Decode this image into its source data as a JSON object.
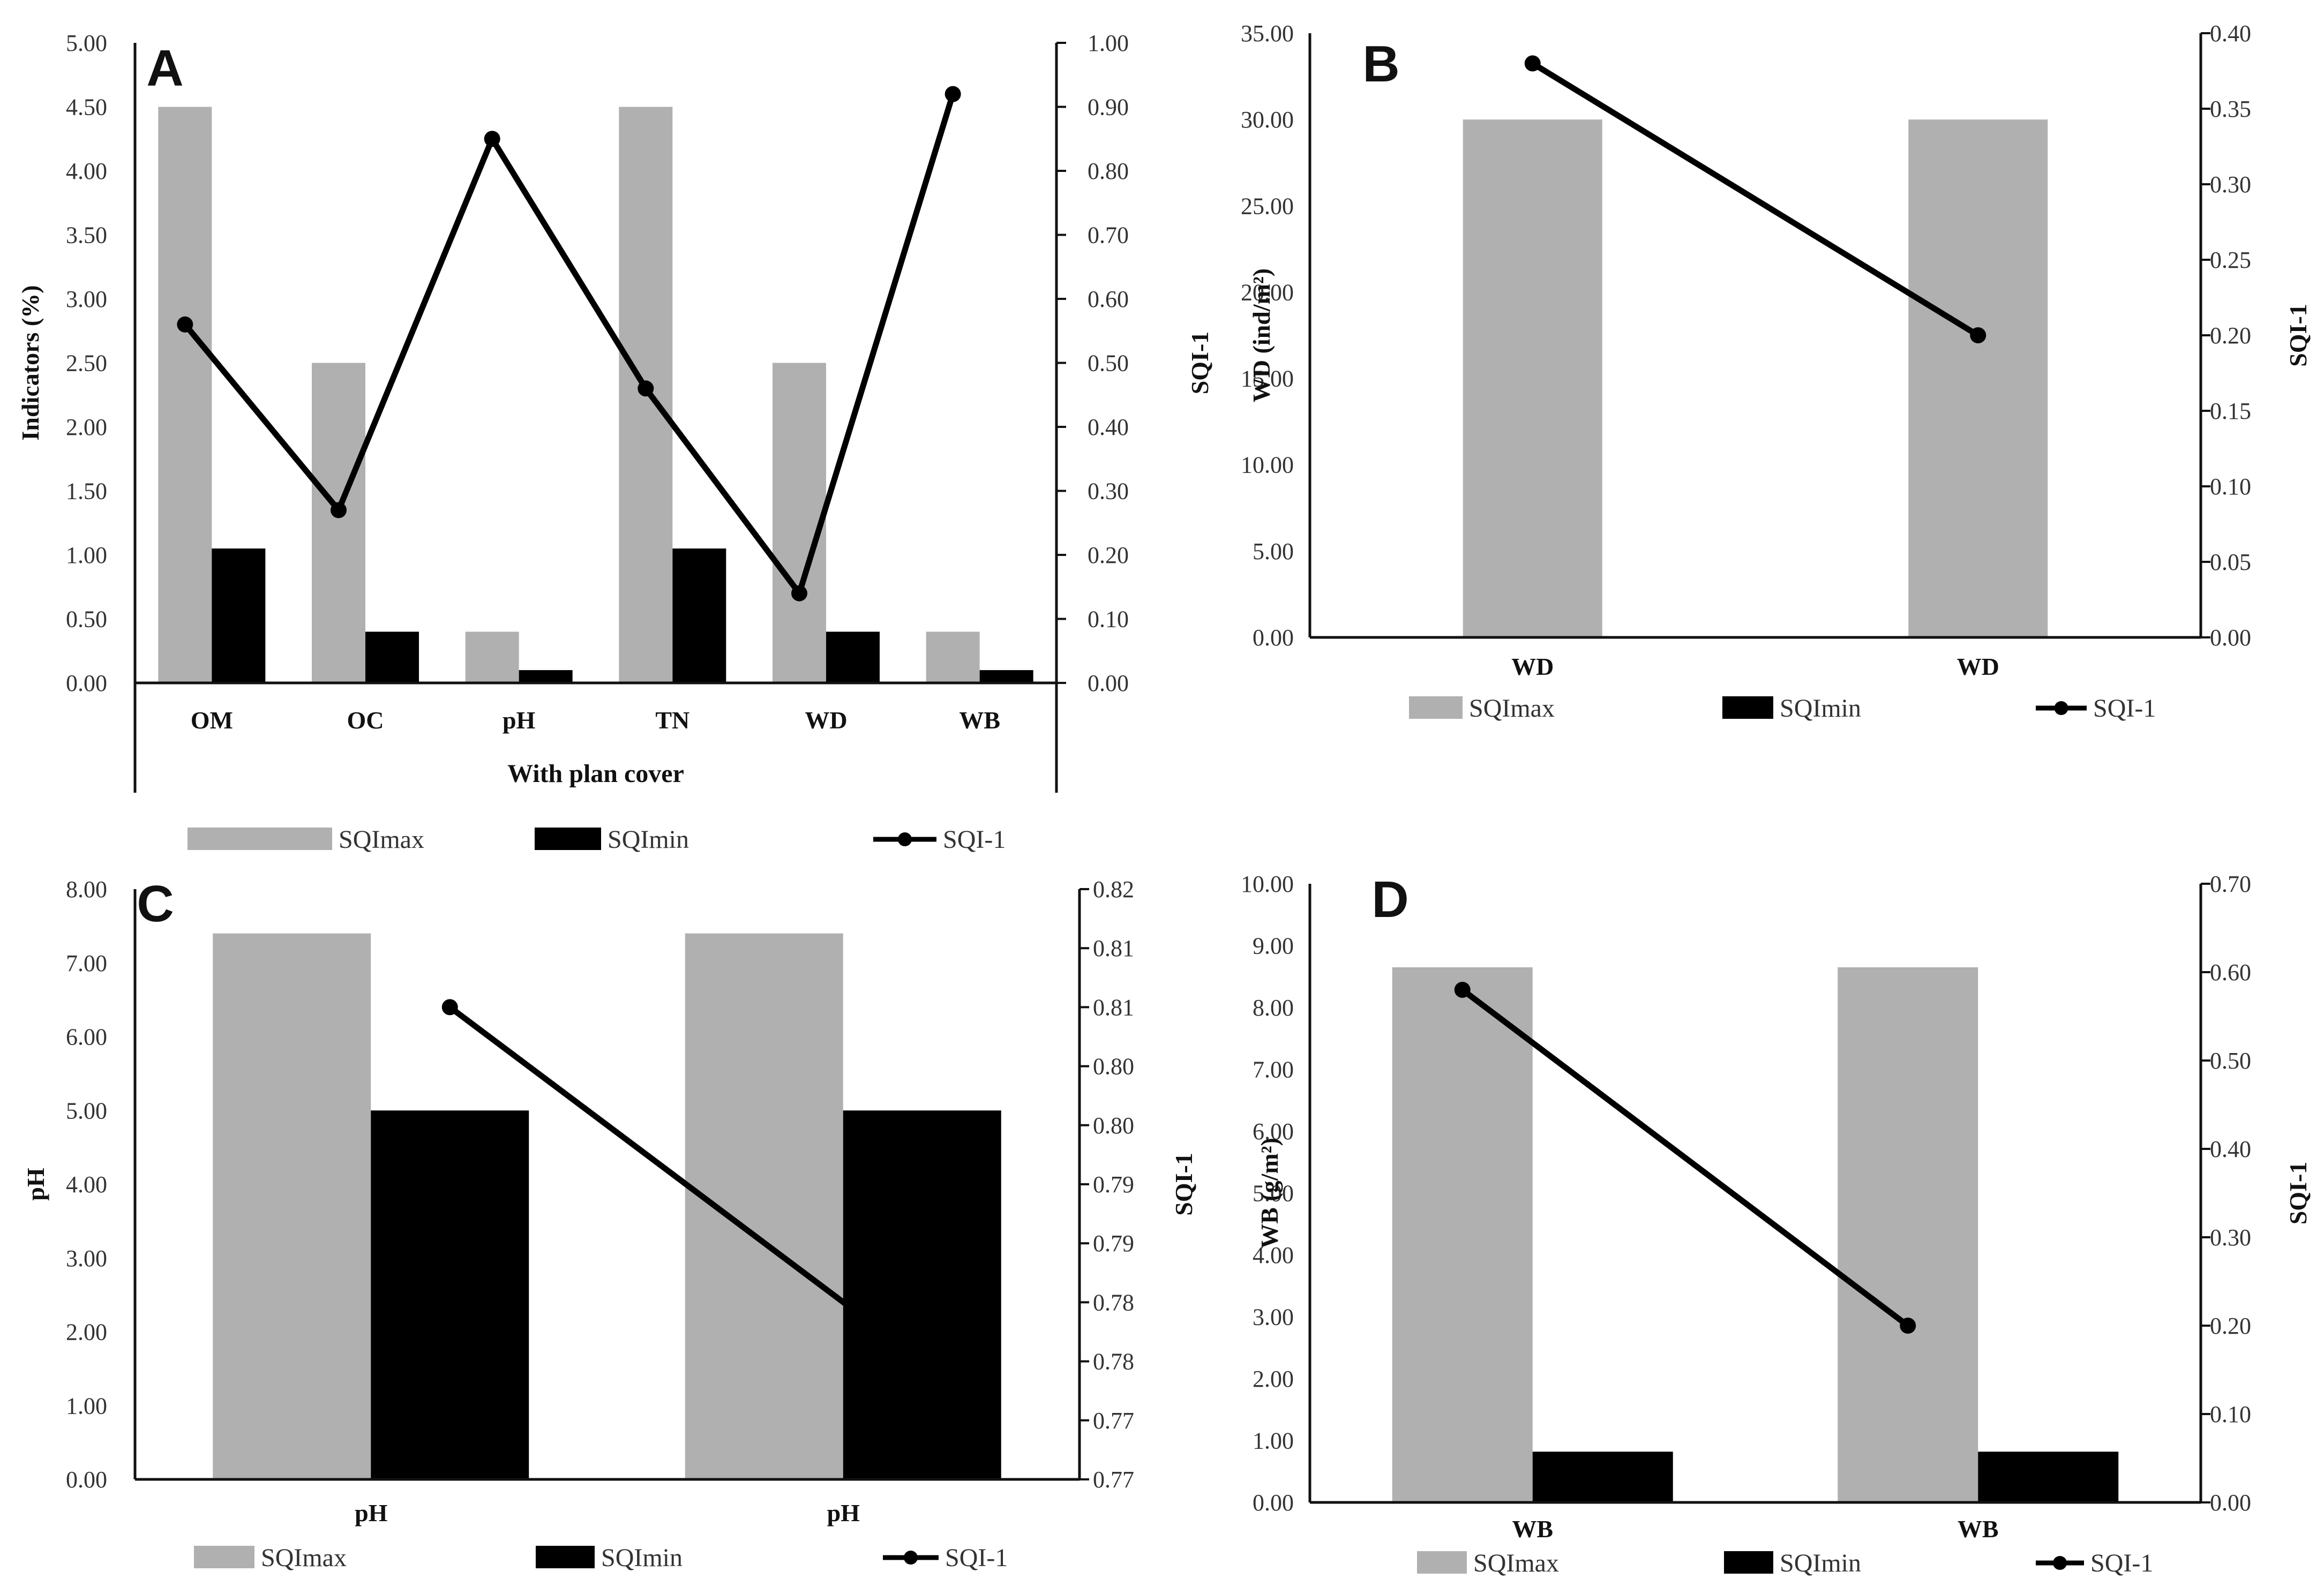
{
  "colors": {
    "sqimax": "#b0b0b0",
    "sqimin": "#000000",
    "line": "#000000",
    "axis": "#111111"
  },
  "legend": {
    "sqimax": "SQImax",
    "sqimin": "SQImin",
    "sqi1": "SQI-1"
  },
  "chart_data": [
    {
      "panel": "A",
      "type": "bar+line",
      "categories": [
        "OM",
        "OC",
        "pH",
        "TN",
        "WD",
        "WB"
      ],
      "series": [
        {
          "name": "SQImax",
          "axis": "left",
          "values": [
            4.5,
            2.5,
            0.4,
            4.5,
            2.5,
            0.4
          ]
        },
        {
          "name": "SQImin",
          "axis": "left",
          "values": [
            1.05,
            0.4,
            0.1,
            1.05,
            0.4,
            0.1
          ]
        },
        {
          "name": "SQI-1",
          "axis": "right",
          "type": "line",
          "values": [
            0.56,
            0.27,
            0.85,
            0.46,
            0.14,
            0.92
          ]
        }
      ],
      "xlabel": "With plan cover",
      "ylabel": "Indicators (%)",
      "y2label": "SQI-1",
      "ylim": [
        0,
        5
      ],
      "y2lim": [
        0,
        1
      ],
      "yticks": [
        "0.00",
        "0.50",
        "1.00",
        "1.50",
        "2.00",
        "2.50",
        "3.00",
        "3.50",
        "4.00",
        "4.50",
        "5.00"
      ],
      "y2ticks": [
        "0.00",
        "0.10",
        "0.20",
        "0.30",
        "0.40",
        "0.50",
        "0.60",
        "0.70",
        "0.80",
        "0.90",
        "1.00"
      ]
    },
    {
      "panel": "B",
      "type": "bar+line",
      "categories": [
        "WD",
        "WD"
      ],
      "series": [
        {
          "name": "SQImax",
          "axis": "left",
          "values": [
            30,
            30
          ]
        },
        {
          "name": "SQImin",
          "axis": "left",
          "values": [
            0,
            0
          ]
        },
        {
          "name": "SQI-1",
          "axis": "right",
          "type": "line",
          "values": [
            0.38,
            0.2
          ]
        }
      ],
      "ylabel": "WD (ind/m²)",
      "y2label": "SQI-1",
      "ylim": [
        0,
        35
      ],
      "y2lim": [
        0,
        0.4
      ],
      "yticks": [
        "0.00",
        "5.00",
        "10.00",
        "15.00",
        "20.00",
        "25.00",
        "30.00",
        "35.00"
      ],
      "y2ticks": [
        "0.00",
        "0.05",
        "0.10",
        "0.15",
        "0.20",
        "0.25",
        "0.30",
        "0.35",
        "0.40"
      ]
    },
    {
      "panel": "C",
      "type": "bar+line",
      "categories": [
        "pH",
        "pH"
      ],
      "series": [
        {
          "name": "SQImax",
          "axis": "left",
          "values": [
            7.4,
            7.4
          ]
        },
        {
          "name": "SQImin",
          "axis": "left",
          "values": [
            5.0,
            5.0
          ]
        },
        {
          "name": "SQI-1",
          "axis": "right",
          "type": "line",
          "values": [
            0.81,
            0.78
          ]
        }
      ],
      "ylabel": "pH",
      "y2label": "SQI-1",
      "ylim": [
        0,
        8
      ],
      "y2lim": [
        0.77,
        0.82
      ],
      "yticks": [
        "0.00",
        "1.00",
        "2.00",
        "3.00",
        "4.00",
        "5.00",
        "6.00",
        "7.00",
        "8.00"
      ],
      "y2ticks": [
        "0.77",
        "0.77",
        "0.78",
        "0.78",
        "0.79",
        "0.79",
        "0.80",
        "0.80",
        "0.81",
        "0.81",
        "0.82"
      ]
    },
    {
      "panel": "D",
      "type": "bar+line",
      "categories": [
        "WB",
        "WB"
      ],
      "series": [
        {
          "name": "SQImax",
          "axis": "left",
          "values": [
            8.65,
            8.65
          ]
        },
        {
          "name": "SQImin",
          "axis": "left",
          "values": [
            0.82,
            0.82
          ]
        },
        {
          "name": "SQI-1",
          "axis": "right",
          "type": "line",
          "values": [
            0.58,
            0.2
          ]
        }
      ],
      "ylabel": "WB (g/m²)",
      "y2label": "SQI-1",
      "ylim": [
        0,
        10
      ],
      "y2lim": [
        0,
        0.7
      ],
      "yticks": [
        "0.00",
        "1.00",
        "2.00",
        "3.00",
        "4.00",
        "5.00",
        "6.00",
        "7.00",
        "8.00",
        "9.00",
        "10.00"
      ],
      "y2ticks": [
        "0.00",
        "0.10",
        "0.20",
        "0.30",
        "0.40",
        "0.50",
        "0.60",
        "0.70"
      ]
    }
  ]
}
